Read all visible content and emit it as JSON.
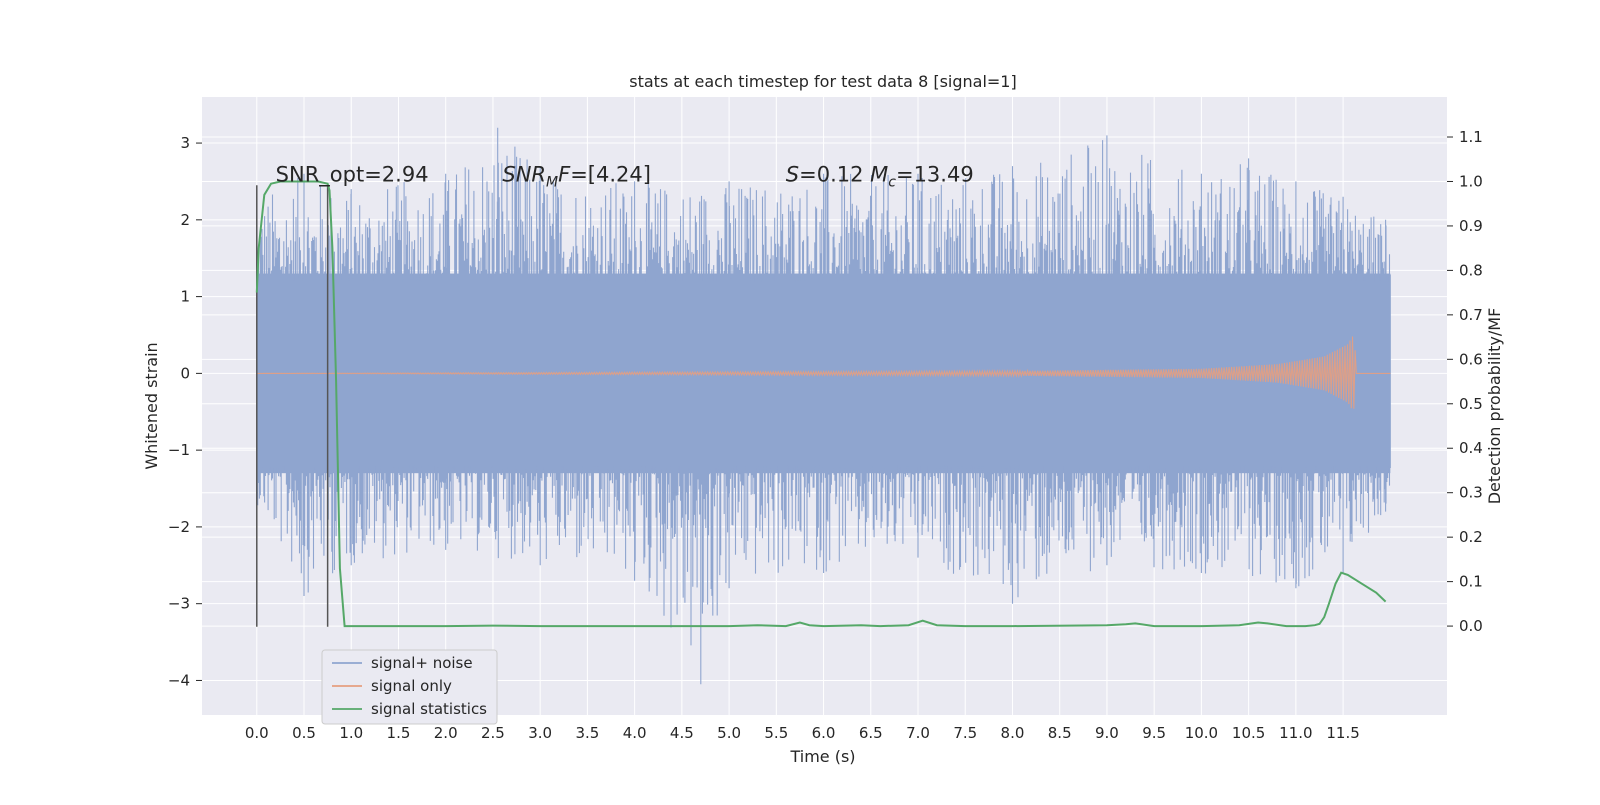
{
  "chart_data": {
    "type": "line",
    "title": "stats at each timestep for test data 8 [signal=1]",
    "xlabel": "Time (s)",
    "ylabel_left": "Whitened strain",
    "ylabel_right": "Detection probability/MF",
    "xlim": [
      -0.58,
      12.6
    ],
    "ylim_left": [
      -4.45,
      3.6
    ],
    "ylim_right": [
      -0.2,
      1.19
    ],
    "xticks": [
      0.0,
      0.5,
      1.0,
      1.5,
      2.0,
      2.5,
      3.0,
      3.5,
      4.0,
      4.5,
      5.0,
      5.5,
      6.0,
      6.5,
      7.0,
      7.5,
      8.0,
      8.5,
      9.0,
      9.5,
      10.0,
      10.5,
      11.0,
      11.5
    ],
    "xtick_labels": [
      "0.0",
      "0.5",
      "1.0",
      "1.5",
      "2.0",
      "2.5",
      "3.0",
      "3.5",
      "4.0",
      "4.5",
      "5.0",
      "5.5",
      "6.0",
      "6.5",
      "7.0",
      "7.5",
      "8.0",
      "8.5",
      "9.0",
      "9.5",
      "10.0",
      "10.5",
      "11.0",
      "11.5"
    ],
    "yticks_left": [
      -4,
      -3,
      -2,
      -1,
      0,
      1,
      2,
      3
    ],
    "ytick_labels_left": [
      "−4",
      "−3",
      "−2",
      "−1",
      "0",
      "1",
      "2",
      "3"
    ],
    "yticks_right": [
      0.0,
      0.1,
      0.2,
      0.3,
      0.4,
      0.5,
      0.6,
      0.7,
      0.8,
      0.9,
      1.0,
      1.1
    ],
    "ytick_labels_right": [
      "0.0",
      "0.1",
      "0.2",
      "0.3",
      "0.4",
      "0.5",
      "0.6",
      "0.7",
      "0.8",
      "0.9",
      "1.0",
      "1.1"
    ],
    "grid": true,
    "legend_placement": "lower-left",
    "series": [
      {
        "name": "signal+ noise",
        "axis": "left",
        "color": "#8fa5cf",
        "x_range": [
          0.0,
          12.0
        ],
        "envelope_top": [
          [
            0.0,
            2.3
          ],
          [
            0.5,
            2.6
          ],
          [
            1.0,
            2.4
          ],
          [
            2.0,
            2.6
          ],
          [
            2.55,
            3.2
          ],
          [
            3.0,
            2.7
          ],
          [
            4.0,
            2.5
          ],
          [
            5.0,
            2.5
          ],
          [
            6.0,
            2.6
          ],
          [
            7.0,
            2.6
          ],
          [
            8.0,
            2.7
          ],
          [
            9.0,
            3.1
          ],
          [
            10.0,
            2.6
          ],
          [
            10.5,
            2.8
          ],
          [
            11.0,
            2.5
          ],
          [
            11.5,
            2.3
          ],
          [
            11.95,
            2.0
          ]
        ],
        "envelope_bottom": [
          [
            0.0,
            -1.7
          ],
          [
            0.5,
            -2.9
          ],
          [
            1.0,
            -2.5
          ],
          [
            2.0,
            -2.3
          ],
          [
            3.0,
            -2.5
          ],
          [
            4.0,
            -2.7
          ],
          [
            4.7,
            -4.05
          ],
          [
            5.0,
            -2.8
          ],
          [
            6.0,
            -2.6
          ],
          [
            7.0,
            -2.4
          ],
          [
            8.0,
            -3.0
          ],
          [
            9.0,
            -2.5
          ],
          [
            10.0,
            -2.6
          ],
          [
            11.0,
            -2.8
          ],
          [
            11.5,
            -2.6
          ],
          [
            11.95,
            -1.8
          ]
        ],
        "core_band": [
          -1.3,
          1.3
        ]
      },
      {
        "name": "signal only",
        "axis": "left",
        "color": "#e59e80",
        "envelope": [
          [
            0.0,
            0.0
          ],
          [
            8.0,
            0.03
          ],
          [
            10.0,
            0.06
          ],
          [
            10.8,
            0.12
          ],
          [
            11.3,
            0.22
          ],
          [
            11.55,
            0.38
          ],
          [
            11.6,
            0.48
          ],
          [
            11.62,
            0.45
          ],
          [
            11.64,
            0.0
          ],
          [
            12.0,
            0.0
          ]
        ]
      },
      {
        "name": "signal statistics",
        "axis": "right",
        "color": "#55a868",
        "x": [
          0.0,
          0.02,
          0.08,
          0.15,
          0.25,
          0.35,
          0.5,
          0.6,
          0.65,
          0.75,
          0.77,
          0.8,
          0.84,
          0.88,
          0.93,
          1.0,
          1.5,
          2.0,
          2.5,
          3.0,
          4.0,
          5.0,
          5.3,
          5.6,
          5.75,
          5.85,
          6.0,
          6.4,
          6.6,
          6.9,
          7.05,
          7.2,
          7.5,
          8.0,
          9.0,
          9.2,
          9.3,
          9.5,
          10.0,
          10.4,
          10.6,
          10.7,
          10.9,
          11.1,
          11.2,
          11.25,
          11.3,
          11.35,
          11.42,
          11.48,
          11.55,
          11.7,
          11.85,
          11.95
        ],
        "y": [
          0.75,
          0.85,
          0.97,
          0.995,
          1.0,
          1.0,
          1.0,
          1.0,
          1.0,
          0.995,
          0.98,
          0.85,
          0.55,
          0.13,
          0.0,
          0.0,
          0.0,
          0.0,
          0.001,
          0.0,
          0.0,
          0.0,
          0.002,
          0.0,
          0.008,
          0.002,
          0.0,
          0.002,
          0.0,
          0.002,
          0.012,
          0.002,
          0.0,
          0.0,
          0.002,
          0.004,
          0.006,
          0.0,
          0.0,
          0.002,
          0.008,
          0.006,
          0.0,
          0.0,
          0.002,
          0.005,
          0.02,
          0.05,
          0.095,
          0.12,
          0.115,
          0.095,
          0.075,
          0.055
        ]
      }
    ],
    "vertical_lines": [
      {
        "x": 0.0,
        "y_range": [
          -3.3,
          2.45
        ],
        "color": "#555555"
      },
      {
        "x": 0.75,
        "y_range": [
          -3.3,
          2.45
        ],
        "color": "#555555"
      }
    ],
    "annotations": [
      {
        "parts": [
          {
            "text": "SNR_opt=2.94",
            "italic": false
          }
        ],
        "x": 0.2,
        "y": 2.5
      },
      {
        "parts": [
          {
            "text": "SNR",
            "italic": true
          },
          {
            "text": "M",
            "italic": true,
            "sub": true
          },
          {
            "text": "F",
            "italic": true
          },
          {
            "text": "=[4.24]",
            "italic": false
          }
        ],
        "x": 2.6,
        "y": 2.5
      },
      {
        "parts": [
          {
            "text": "S",
            "italic": true
          },
          {
            "text": "=0.12   ",
            "italic": false
          },
          {
            "text": "M",
            "italic": true
          },
          {
            "text": "c",
            "italic": true,
            "sub": true
          },
          {
            "text": "=13.49",
            "italic": false
          }
        ],
        "x": 5.6,
        "y": 2.5
      }
    ],
    "colors": {
      "plot_background": "#eaeaf2",
      "grid": "#ffffff"
    }
  }
}
